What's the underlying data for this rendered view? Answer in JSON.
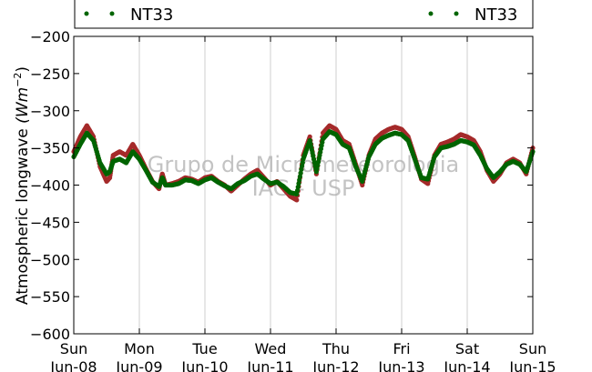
{
  "chart_data": {
    "type": "scatter",
    "ylabel": "Atmospheric longwave",
    "ylabel_unit": "(Wm",
    "ylabel_unit_exp": "−2",
    "ylabel_unit_close": ")",
    "ylim": [
      -600,
      -200
    ],
    "yticks": [
      -600,
      -550,
      -500,
      -450,
      -400,
      -350,
      -300,
      -250,
      -200
    ],
    "ytick_labels": [
      "−600",
      "−550",
      "−500",
      "−450",
      "−400",
      "−350",
      "−300",
      "−250",
      "−200"
    ],
    "xlim": [
      0,
      7
    ],
    "xticks": [
      {
        "day": "Sun",
        "date": "Jun-08"
      },
      {
        "day": "Mon",
        "date": "Jun-09"
      },
      {
        "day": "Tue",
        "date": "Jun-10"
      },
      {
        "day": "Wed",
        "date": "Jun-11"
      },
      {
        "day": "Thu",
        "date": "Jun-12"
      },
      {
        "day": "Fri",
        "date": "Jun-13"
      },
      {
        "day": "Sat",
        "date": "Jun-14"
      },
      {
        "day": "Sun",
        "date": "Jun-15"
      }
    ],
    "grid": "vertical",
    "legend": {
      "placement": "top",
      "entries": [
        "NT33",
        "NT33"
      ]
    },
    "watermark": [
      "Grupo de Micrometeorologia",
      "IAG - USP"
    ],
    "series": [
      {
        "name": "NT33",
        "color": "#a52a2a",
        "x": [
          0.0,
          0.1,
          0.2,
          0.3,
          0.4,
          0.5,
          0.55,
          0.6,
          0.7,
          0.8,
          0.9,
          1.0,
          1.1,
          1.2,
          1.3,
          1.35,
          1.4,
          1.5,
          1.6,
          1.7,
          1.8,
          1.9,
          2.0,
          2.1,
          2.2,
          2.3,
          2.4,
          2.5,
          2.6,
          2.7,
          2.8,
          2.9,
          3.0,
          3.1,
          3.2,
          3.3,
          3.4,
          3.5,
          3.6,
          3.7,
          3.8,
          3.9,
          4.0,
          4.1,
          4.2,
          4.3,
          4.4,
          4.5,
          4.6,
          4.7,
          4.8,
          4.9,
          5.0,
          5.1,
          5.2,
          5.3,
          5.4,
          5.5,
          5.6,
          5.7,
          5.8,
          5.9,
          6.0,
          6.1,
          6.2,
          6.3,
          6.4,
          6.5,
          6.6,
          6.7,
          6.8,
          6.9,
          7.0
        ],
        "y": [
          -355,
          -335,
          -320,
          -335,
          -375,
          -395,
          -390,
          -360,
          -355,
          -360,
          -345,
          -360,
          -378,
          -395,
          -405,
          -385,
          -400,
          -398,
          -395,
          -390,
          -392,
          -396,
          -390,
          -388,
          -395,
          -400,
          -408,
          -400,
          -392,
          -385,
          -380,
          -390,
          -400,
          -395,
          -405,
          -415,
          -420,
          -360,
          -335,
          -385,
          -330,
          -320,
          -325,
          -340,
          -345,
          -372,
          -400,
          -360,
          -338,
          -330,
          -325,
          -322,
          -325,
          -335,
          -362,
          -392,
          -398,
          -360,
          -345,
          -342,
          -338,
          -332,
          -335,
          -340,
          -355,
          -380,
          -395,
          -385,
          -370,
          -365,
          -370,
          -385,
          -350
        ]
      },
      {
        "name": "NT33",
        "color": "#006400",
        "x": [
          0.0,
          0.1,
          0.2,
          0.3,
          0.4,
          0.5,
          0.55,
          0.6,
          0.7,
          0.8,
          0.9,
          1.0,
          1.1,
          1.2,
          1.3,
          1.35,
          1.4,
          1.5,
          1.6,
          1.7,
          1.8,
          1.9,
          2.0,
          2.1,
          2.2,
          2.3,
          2.4,
          2.5,
          2.6,
          2.7,
          2.8,
          2.9,
          3.0,
          3.1,
          3.2,
          3.3,
          3.4,
          3.5,
          3.6,
          3.7,
          3.8,
          3.9,
          4.0,
          4.1,
          4.2,
          4.3,
          4.4,
          4.5,
          4.6,
          4.7,
          4.8,
          4.9,
          5.0,
          5.1,
          5.2,
          5.3,
          5.4,
          5.5,
          5.6,
          5.7,
          5.8,
          5.9,
          6.0,
          6.1,
          6.2,
          6.3,
          6.4,
          6.5,
          6.6,
          6.7,
          6.8,
          6.9,
          7.0
        ],
        "y": [
          -362,
          -345,
          -330,
          -340,
          -370,
          -385,
          -382,
          -368,
          -365,
          -370,
          -355,
          -365,
          -380,
          -396,
          -402,
          -390,
          -400,
          -400,
          -398,
          -393,
          -394,
          -398,
          -393,
          -390,
          -396,
          -401,
          -405,
          -398,
          -394,
          -388,
          -385,
          -392,
          -398,
          -396,
          -402,
          -410,
          -412,
          -365,
          -340,
          -382,
          -338,
          -328,
          -332,
          -345,
          -350,
          -375,
          -395,
          -362,
          -345,
          -337,
          -333,
          -330,
          -332,
          -340,
          -365,
          -390,
          -392,
          -362,
          -350,
          -348,
          -345,
          -340,
          -342,
          -346,
          -360,
          -378,
          -390,
          -382,
          -372,
          -368,
          -372,
          -382,
          -355
        ]
      }
    ]
  }
}
